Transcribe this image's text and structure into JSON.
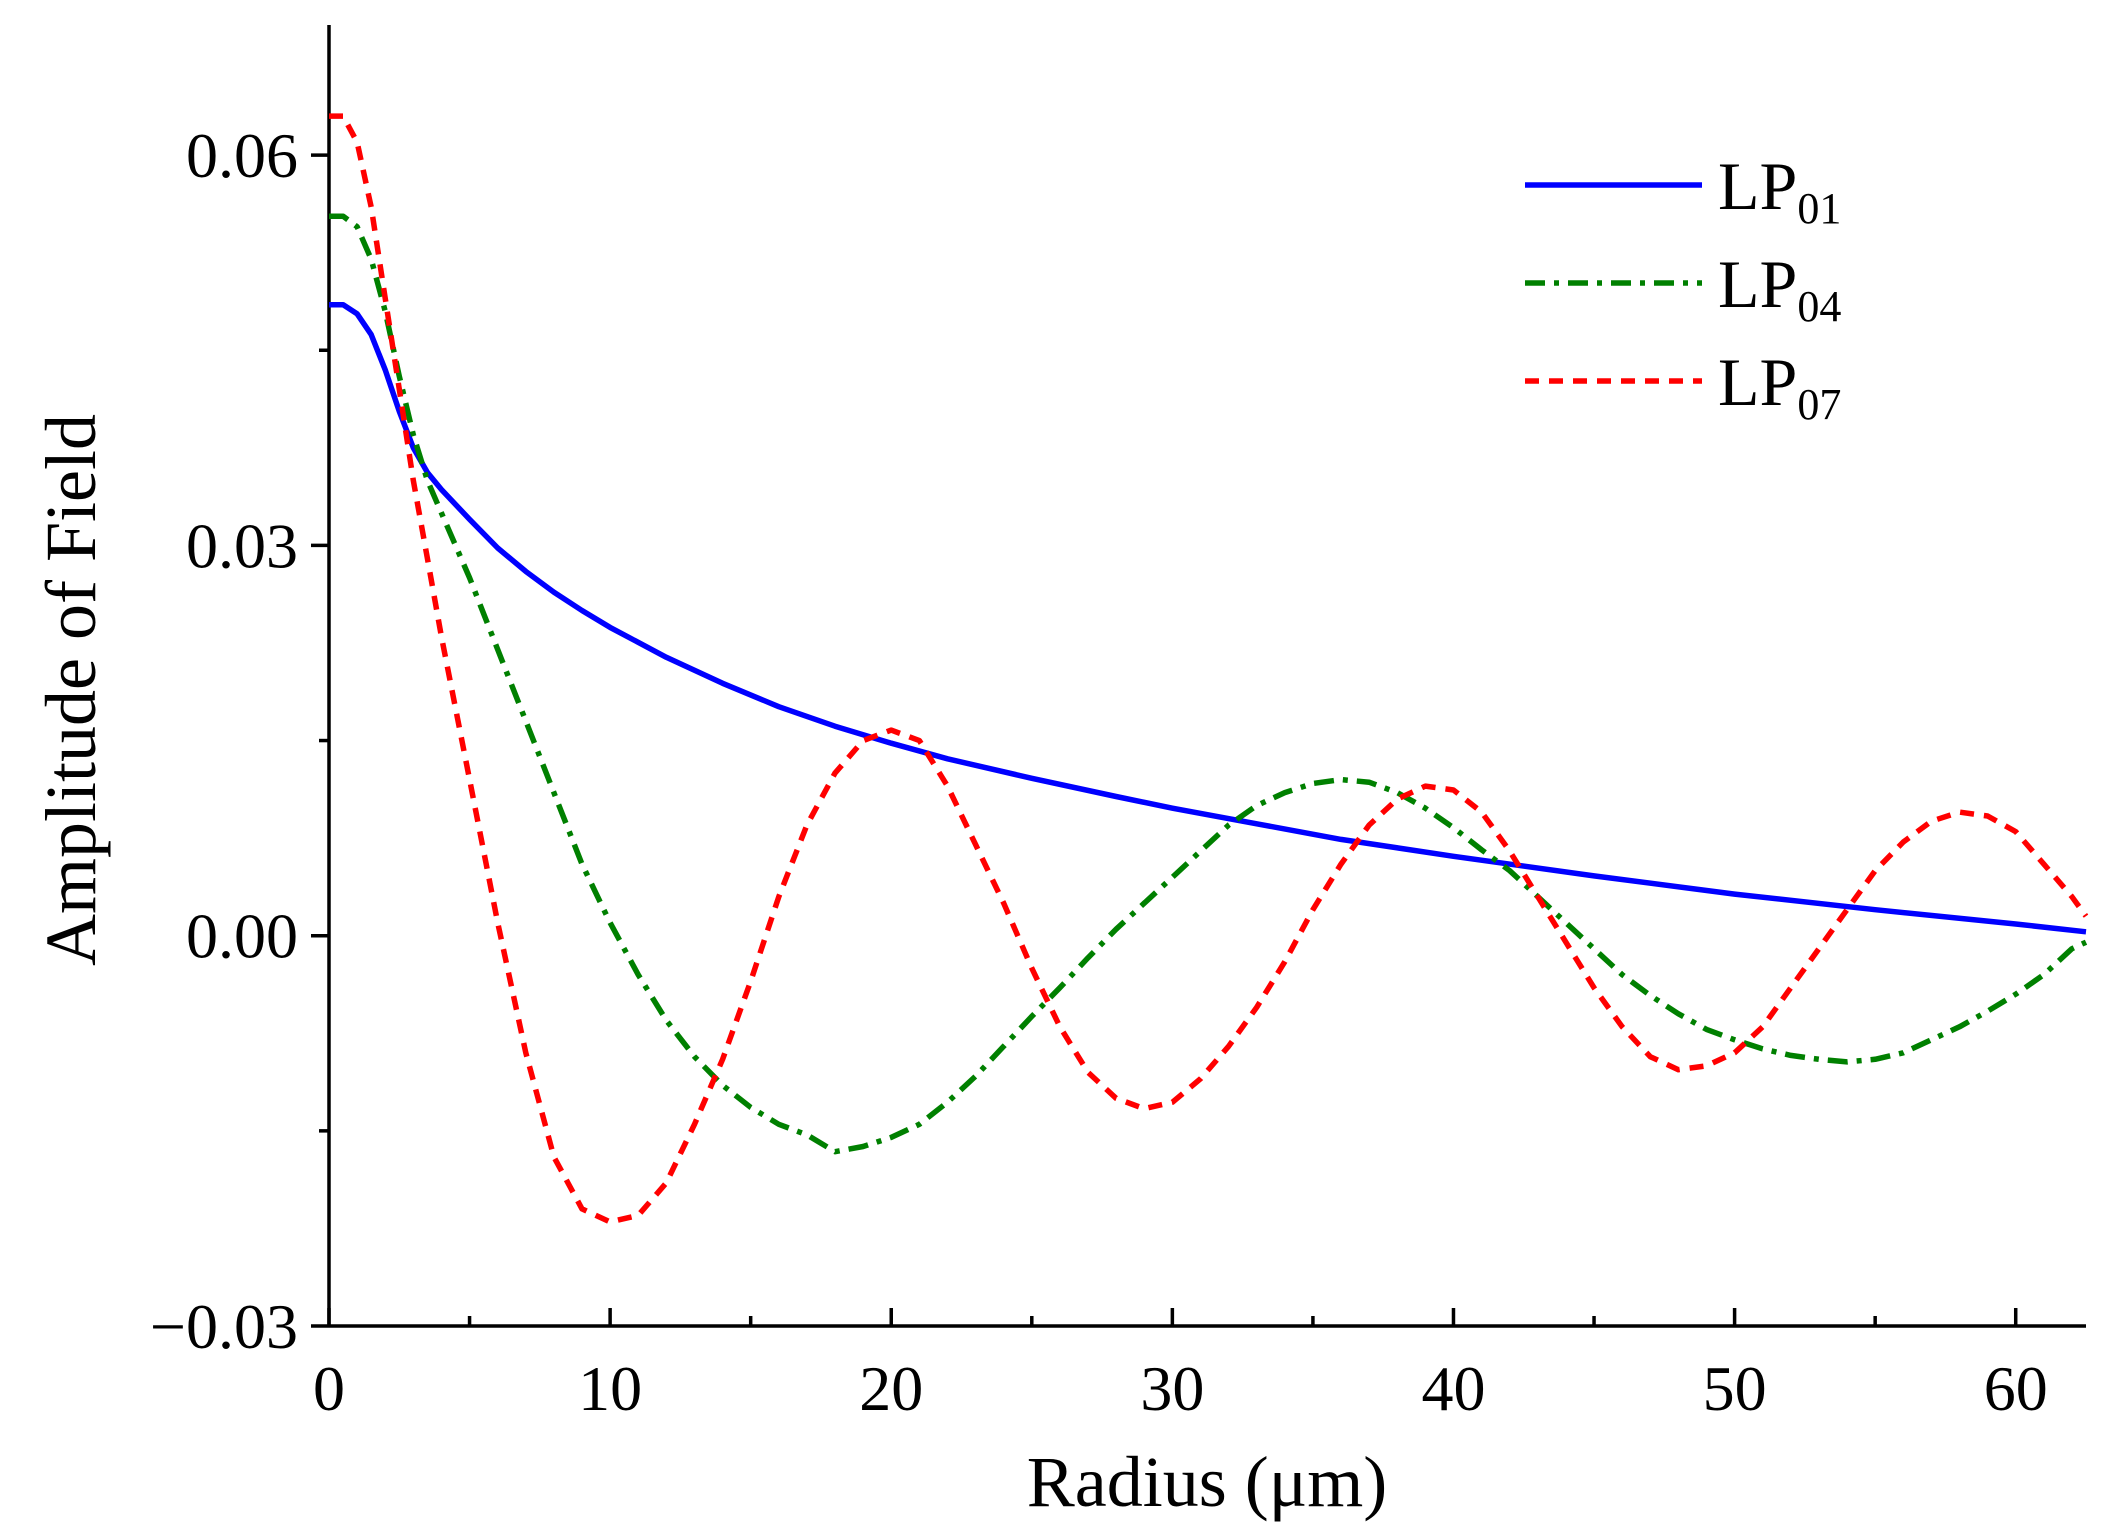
{
  "chart_data": {
    "type": "line",
    "title": "",
    "xlabel": "Radius (μm)",
    "ylabel": "Amplitude of Field",
    "xlim": [
      0,
      62.5
    ],
    "ylim": [
      -0.03,
      0.07
    ],
    "x_ticks": [
      0,
      10,
      20,
      30,
      40,
      50,
      60
    ],
    "x_tick_labels": [
      "0",
      "10",
      "20",
      "30",
      "40",
      "50",
      "60"
    ],
    "x_minor_ticks": [
      5,
      15,
      25,
      35,
      45,
      55
    ],
    "y_ticks": [
      -0.03,
      0,
      0.03,
      0.06
    ],
    "y_tick_labels": [
      "−0.03",
      "0.00",
      "0.03",
      "0.06"
    ],
    "y_minor_ticks": [
      -0.015,
      0.015,
      0.045
    ],
    "grid": false,
    "legend_position": "top-right",
    "series": [
      {
        "name": "LP01",
        "legend_main": "LP",
        "legend_sub": "01",
        "color": "#0000ff",
        "dash": "solid",
        "points": [
          [
            0,
            0.0485
          ],
          [
            0.5,
            0.0485
          ],
          [
            1,
            0.0478
          ],
          [
            1.5,
            0.0462
          ],
          [
            2,
            0.0435
          ],
          [
            2.5,
            0.0403
          ],
          [
            3,
            0.0375
          ],
          [
            3.5,
            0.0356
          ],
          [
            4,
            0.0343
          ],
          [
            5,
            0.032
          ],
          [
            6,
            0.0298
          ],
          [
            7,
            0.028
          ],
          [
            8,
            0.0264
          ],
          [
            9,
            0.025
          ],
          [
            10,
            0.0237
          ],
          [
            12,
            0.0214
          ],
          [
            14,
            0.0194
          ],
          [
            16,
            0.0176
          ],
          [
            18,
            0.0161
          ],
          [
            20,
            0.0148
          ],
          [
            22,
            0.0136
          ],
          [
            25,
            0.0121
          ],
          [
            28,
            0.0107
          ],
          [
            30,
            0.0098
          ],
          [
            33,
            0.0086
          ],
          [
            36,
            0.0074
          ],
          [
            40,
            0.0061
          ],
          [
            45,
            0.0046
          ],
          [
            50,
            0.0032
          ],
          [
            55,
            0.002
          ],
          [
            60,
            0.0009
          ],
          [
            62.5,
            0.0003
          ]
        ]
      },
      {
        "name": "LP04",
        "legend_main": "LP",
        "legend_sub": "04",
        "color": "#008000",
        "dash": "dash-dot",
        "points": [
          [
            0,
            0.0553
          ],
          [
            0.5,
            0.0553
          ],
          [
            1,
            0.0545
          ],
          [
            1.5,
            0.052
          ],
          [
            2,
            0.048
          ],
          [
            2.5,
            0.043
          ],
          [
            3,
            0.0385
          ],
          [
            3.5,
            0.035
          ],
          [
            4,
            0.0325
          ],
          [
            5,
            0.0275
          ],
          [
            6,
            0.022
          ],
          [
            7,
            0.0165
          ],
          [
            8,
            0.011
          ],
          [
            9,
            0.0055
          ],
          [
            10,
            0.001
          ],
          [
            11,
            -0.003
          ],
          [
            12,
            -0.0065
          ],
          [
            13,
            -0.0093
          ],
          [
            14,
            -0.0115
          ],
          [
            15,
            -0.0132
          ],
          [
            16,
            -0.0145
          ],
          [
            17,
            -0.0153
          ],
          [
            18,
            -0.0166
          ],
          [
            19,
            -0.0162
          ],
          [
            20,
            -0.0155
          ],
          [
            21,
            -0.0145
          ],
          [
            22,
            -0.0128
          ],
          [
            23,
            -0.0108
          ],
          [
            24,
            -0.0085
          ],
          [
            25,
            -0.0062
          ],
          [
            26,
            -0.004
          ],
          [
            27,
            -0.0017
          ],
          [
            28,
            0.0005
          ],
          [
            29,
            0.0025
          ],
          [
            30,
            0.0045
          ],
          [
            31,
            0.0065
          ],
          [
            32,
            0.0085
          ],
          [
            33,
            0.01
          ],
          [
            34,
            0.011
          ],
          [
            35,
            0.0117
          ],
          [
            36,
            0.012
          ],
          [
            37,
            0.0118
          ],
          [
            38,
            0.011
          ],
          [
            39,
            0.0098
          ],
          [
            40,
            0.0083
          ],
          [
            41,
            0.0066
          ],
          [
            42,
            0.005
          ],
          [
            43,
            0.003
          ],
          [
            44,
            0.001
          ],
          [
            45,
            -0.001
          ],
          [
            46,
            -0.003
          ],
          [
            47,
            -0.0046
          ],
          [
            48,
            -0.006
          ],
          [
            49,
            -0.0072
          ],
          [
            50,
            -0.008
          ],
          [
            51,
            -0.0087
          ],
          [
            52,
            -0.0092
          ],
          [
            53,
            -0.0095
          ],
          [
            54,
            -0.0097
          ],
          [
            55,
            -0.0095
          ],
          [
            56,
            -0.009
          ],
          [
            57,
            -0.008
          ],
          [
            58,
            -0.007
          ],
          [
            59,
            -0.0058
          ],
          [
            60,
            -0.0045
          ],
          [
            61,
            -0.003
          ],
          [
            62,
            -0.001
          ],
          [
            62.5,
            -0.0005
          ]
        ]
      },
      {
        "name": "LP07",
        "legend_main": "LP",
        "legend_sub": "07",
        "color": "#ff0000",
        "dash": "dashed",
        "points": [
          [
            0,
            0.063
          ],
          [
            0.5,
            0.063
          ],
          [
            1,
            0.061
          ],
          [
            1.5,
            0.056
          ],
          [
            2,
            0.049
          ],
          [
            2.5,
            0.042
          ],
          [
            3,
            0.035
          ],
          [
            3.5,
            0.029
          ],
          [
            4,
            0.023
          ],
          [
            5,
            0.012
          ],
          [
            6,
            0.001
          ],
          [
            7,
            -0.009
          ],
          [
            8,
            -0.017
          ],
          [
            9,
            -0.021
          ],
          [
            10,
            -0.022
          ],
          [
            11,
            -0.0215
          ],
          [
            12,
            -0.019
          ],
          [
            13,
            -0.0145
          ],
          [
            14,
            -0.0095
          ],
          [
            15,
            -0.0035
          ],
          [
            16,
            0.003
          ],
          [
            17,
            0.0085
          ],
          [
            18,
            0.0125
          ],
          [
            19,
            0.015
          ],
          [
            20,
            0.0158
          ],
          [
            21,
            0.015
          ],
          [
            22,
            0.0115
          ],
          [
            23,
            0.007
          ],
          [
            24,
            0.0025
          ],
          [
            25,
            -0.0025
          ],
          [
            26,
            -0.007
          ],
          [
            27,
            -0.0105
          ],
          [
            28,
            -0.0125
          ],
          [
            29,
            -0.0133
          ],
          [
            30,
            -0.0128
          ],
          [
            31,
            -0.011
          ],
          [
            32,
            -0.0085
          ],
          [
            33,
            -0.0055
          ],
          [
            34,
            -0.002
          ],
          [
            35,
            0.002
          ],
          [
            36,
            0.0055
          ],
          [
            37,
            0.0085
          ],
          [
            38,
            0.0105
          ],
          [
            39,
            0.0115
          ],
          [
            40,
            0.0112
          ],
          [
            41,
            0.0095
          ],
          [
            42,
            0.0065
          ],
          [
            43,
            0.003
          ],
          [
            44,
            -0.0005
          ],
          [
            45,
            -0.004
          ],
          [
            46,
            -0.007
          ],
          [
            47,
            -0.0093
          ],
          [
            48,
            -0.0103
          ],
          [
            49,
            -0.01
          ],
          [
            50,
            -0.009
          ],
          [
            51,
            -0.007
          ],
          [
            52,
            -0.004
          ],
          [
            53,
            -0.001
          ],
          [
            54,
            0.002
          ],
          [
            55,
            0.005
          ],
          [
            56,
            0.0072
          ],
          [
            57,
            0.0088
          ],
          [
            58,
            0.0095
          ],
          [
            59,
            0.0092
          ],
          [
            60,
            0.008
          ],
          [
            61,
            0.0055
          ],
          [
            62,
            0.003
          ],
          [
            62.5,
            0.0015
          ]
        ]
      }
    ]
  }
}
